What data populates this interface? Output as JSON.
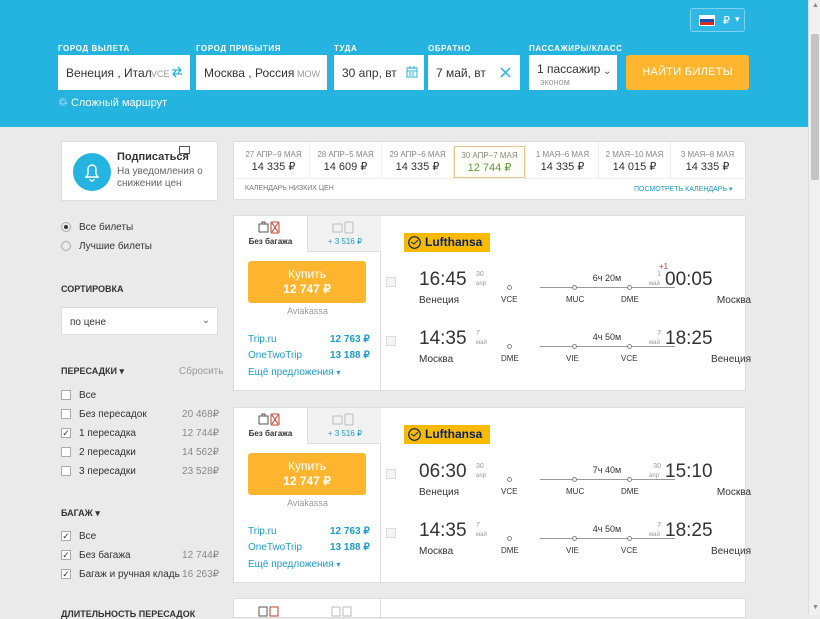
{
  "header": {
    "currency": "₽",
    "from_label": "ГОРОД ВЫЛЕТА",
    "to_label": "ГОРОД ПРИБЫТИЯ",
    "depart_label": "ТУДА",
    "return_label": "ОБРАТНО",
    "pax_label": "ПАССАЖИРЫ/КЛАСС",
    "from_value": "Венеция , Итал",
    "from_code": "VCE",
    "to_value": "Москва , Россия",
    "to_code": "MOW",
    "depart_value": "30 апр, вт",
    "return_value": "7 май, вт",
    "pax_value": "1 пассажир",
    "class_value": "эконом",
    "search_button": "НАЙТИ БИЛЕТЫ",
    "multi_route": "Сложный маршрут"
  },
  "subscribe": {
    "title": "Подписаться",
    "text1": "На уведомления о",
    "text2": "снижении цен"
  },
  "calendar": {
    "cells": [
      {
        "dates": "27 АПР–9 МАЯ",
        "price": "14 335 ₽"
      },
      {
        "dates": "28 АПР–5 МАЯ",
        "price": "14 609 ₽"
      },
      {
        "dates": "29 АПР–6 МАЯ",
        "price": "14 335 ₽"
      },
      {
        "dates": "30 АПР–7 МАЯ",
        "price": "12 744 ₽"
      },
      {
        "dates": "1 МАЯ–6 МАЯ",
        "price": "14 335 ₽"
      },
      {
        "dates": "2 МАЯ–10 МАЯ",
        "price": "14 015 ₽"
      },
      {
        "dates": "3 МАЯ–8 МАЯ",
        "price": "14 335 ₽"
      }
    ],
    "footer_left": "КАЛЕНДАРЬ НИЗКИХ ЦЕН",
    "footer_right": "ПОСМОТРЕТЬ КАЛЕНДАРЬ"
  },
  "sidebar": {
    "all_tickets": "Все билеты",
    "best_tickets": "Лучшие билеты",
    "sort_title": "СОРТИРОВКА",
    "sort_value": "по цене",
    "transfers_title": "ПЕРЕСАДКИ",
    "reset": "Сбросить",
    "transfers": [
      {
        "label": "Все",
        "price": "",
        "checked": false
      },
      {
        "label": "Без пересадок",
        "price": "20 468₽",
        "checked": false
      },
      {
        "label": "1 пересадка",
        "price": "12 744₽",
        "checked": true
      },
      {
        "label": "2 пересадки",
        "price": "14 562₽",
        "checked": false
      },
      {
        "label": "3 пересадки",
        "price": "23 528₽",
        "checked": false
      }
    ],
    "baggage_title": "БАГАЖ",
    "baggage": [
      {
        "label": "Все",
        "price": "",
        "checked": true
      },
      {
        "label": "Без багажа",
        "price": "12 744₽",
        "checked": true
      },
      {
        "label": "Багаж и ручная кладь",
        "price": "16 263₽",
        "checked": true
      }
    ],
    "duration_title": "ДЛИТЕЛЬНОСТЬ ПЕРЕСАДОК"
  },
  "tickets": [
    {
      "tab1": "Без багажа",
      "tab2": "+ 3 516 ₽",
      "buy": "Купить",
      "price": "12 747 ₽",
      "agency": "Aviakassa",
      "offers": [
        {
          "name": "Trip.ru",
          "price": "12 763 ₽"
        },
        {
          "name": "OneTwoTrip",
          "price": "13 188 ₽"
        }
      ],
      "more": "Ещё предложения",
      "airline": "Lufthansa",
      "segments": [
        {
          "dep": "16:45",
          "dep_day": "30",
          "dep_month": "апр",
          "dep_city": "Венеция",
          "duration": "6ч 20м",
          "codes": [
            "VCE",
            "MUC",
            "DME"
          ],
          "arr": "00:05",
          "arr_day": "1",
          "arr_month": "май",
          "arr_city": "Москва",
          "plus": "+1"
        },
        {
          "dep": "14:35",
          "dep_day": "7",
          "dep_month": "май",
          "dep_city": "Москва",
          "duration": "4ч 50м",
          "codes": [
            "DME",
            "VIE",
            "VCE"
          ],
          "arr": "18:25",
          "arr_day": "7",
          "arr_month": "май",
          "arr_city": "Венеция",
          "plus": ""
        }
      ]
    },
    {
      "tab1": "Без багажа",
      "tab2": "+ 3 516 ₽",
      "buy": "Купить",
      "price": "12 747 ₽",
      "agency": "Aviakassa",
      "offers": [
        {
          "name": "Trip.ru",
          "price": "12 763 ₽"
        },
        {
          "name": "OneTwoTrip",
          "price": "13 188 ₽"
        }
      ],
      "more": "Ещё предложения",
      "airline": "Lufthansa",
      "segments": [
        {
          "dep": "06:30",
          "dep_day": "30",
          "dep_month": "апр",
          "dep_city": "Венеция",
          "duration": "7ч 40м",
          "codes": [
            "VCE",
            "MUC",
            "DME"
          ],
          "arr": "15:10",
          "arr_day": "30",
          "arr_month": "апр",
          "arr_city": "Москва",
          "plus": ""
        },
        {
          "dep": "14:35",
          "dep_day": "7",
          "dep_month": "май",
          "dep_city": "Москва",
          "duration": "4ч 50м",
          "codes": [
            "DME",
            "VIE",
            "VCE"
          ],
          "arr": "18:25",
          "arr_day": "7",
          "arr_month": "май",
          "arr_city": "Венеция",
          "plus": ""
        }
      ]
    }
  ]
}
